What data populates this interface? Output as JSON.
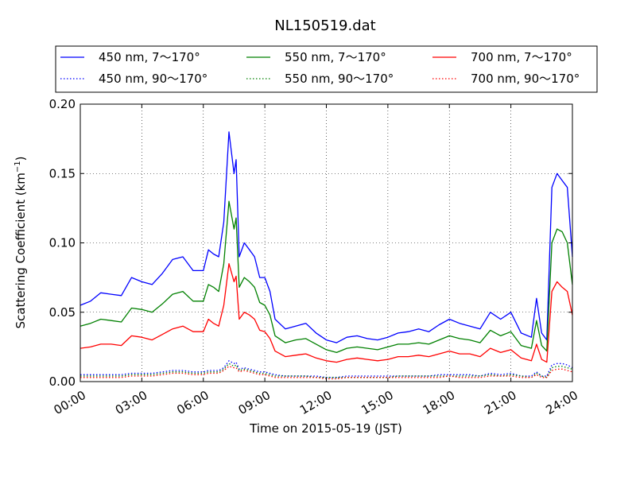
{
  "chart_data": {
    "type": "line",
    "title": "NL150519.dat",
    "xlabel": "Time on 2015-05-19 (JST)",
    "ylabel_main": "Scattering Coefficient (km",
    "ylabel_sup": "−1",
    "ylabel_end": ")",
    "xlim": [
      "00:00",
      "24:00"
    ],
    "ylim": [
      0,
      0.2
    ],
    "grid": true,
    "legend_position": "top",
    "x_ticks": [
      "00:00",
      "03:00",
      "06:00",
      "09:00",
      "12:00",
      "15:00",
      "18:00",
      "21:00",
      "24:00"
    ],
    "y_ticks": [
      "0.00",
      "0.05",
      "0.10",
      "0.15",
      "0.20"
    ],
    "x_hours": [
      0,
      0.5,
      1,
      1.5,
      2,
      2.5,
      3,
      3.5,
      4,
      4.5,
      5,
      5.5,
      6,
      6.25,
      6.5,
      6.75,
      7,
      7.25,
      7.5,
      7.6,
      7.75,
      8,
      8.25,
      8.5,
      8.75,
      9,
      9.25,
      9.5,
      10,
      10.5,
      11,
      11.5,
      12,
      12.5,
      13,
      13.5,
      14,
      14.5,
      15,
      15.5,
      16,
      16.5,
      17,
      17.5,
      18,
      18.5,
      19,
      19.5,
      20,
      20.5,
      21,
      21.5,
      22,
      22.25,
      22.5,
      22.75,
      23,
      23.25,
      23.5,
      23.75,
      24
    ],
    "series": [
      {
        "name": "450 nm, 7～170°",
        "color": "#0000ff",
        "dash": "solid",
        "values": [
          0.055,
          0.058,
          0.064,
          0.063,
          0.062,
          0.075,
          0.072,
          0.07,
          0.078,
          0.088,
          0.09,
          0.08,
          0.08,
          0.095,
          0.092,
          0.09,
          0.115,
          0.18,
          0.15,
          0.16,
          0.09,
          0.1,
          0.095,
          0.09,
          0.075,
          0.075,
          0.065,
          0.045,
          0.038,
          0.04,
          0.042,
          0.035,
          0.03,
          0.028,
          0.032,
          0.033,
          0.031,
          0.03,
          0.032,
          0.035,
          0.036,
          0.038,
          0.036,
          0.041,
          0.045,
          0.042,
          0.04,
          0.038,
          0.05,
          0.045,
          0.05,
          0.035,
          0.032,
          0.06,
          0.035,
          0.03,
          0.14,
          0.15,
          0.145,
          0.14,
          0.09
        ]
      },
      {
        "name": "550 nm, 7～170°",
        "color": "#008000",
        "dash": "solid",
        "values": [
          0.04,
          0.042,
          0.045,
          0.044,
          0.043,
          0.053,
          0.052,
          0.05,
          0.056,
          0.063,
          0.065,
          0.058,
          0.058,
          0.07,
          0.068,
          0.065,
          0.085,
          0.13,
          0.11,
          0.118,
          0.068,
          0.075,
          0.072,
          0.068,
          0.057,
          0.055,
          0.048,
          0.033,
          0.028,
          0.03,
          0.031,
          0.027,
          0.023,
          0.021,
          0.024,
          0.025,
          0.024,
          0.023,
          0.025,
          0.027,
          0.027,
          0.028,
          0.027,
          0.03,
          0.033,
          0.031,
          0.03,
          0.028,
          0.037,
          0.033,
          0.036,
          0.026,
          0.024,
          0.044,
          0.026,
          0.022,
          0.1,
          0.11,
          0.108,
          0.1,
          0.07
        ]
      },
      {
        "name": "700 nm, 7～170°",
        "color": "#ff0000",
        "dash": "solid",
        "values": [
          0.024,
          0.025,
          0.027,
          0.027,
          0.026,
          0.033,
          0.032,
          0.03,
          0.034,
          0.038,
          0.04,
          0.036,
          0.036,
          0.045,
          0.042,
          0.04,
          0.055,
          0.085,
          0.072,
          0.076,
          0.045,
          0.05,
          0.048,
          0.045,
          0.037,
          0.036,
          0.031,
          0.022,
          0.018,
          0.019,
          0.02,
          0.017,
          0.015,
          0.014,
          0.016,
          0.017,
          0.016,
          0.015,
          0.016,
          0.018,
          0.018,
          0.019,
          0.018,
          0.02,
          0.022,
          0.02,
          0.02,
          0.018,
          0.024,
          0.021,
          0.023,
          0.017,
          0.015,
          0.027,
          0.016,
          0.014,
          0.065,
          0.072,
          0.068,
          0.065,
          0.048
        ]
      },
      {
        "name": "450 nm, 90～170°",
        "color": "#0000ff",
        "dash": "dotted",
        "values": [
          0.005,
          0.005,
          0.005,
          0.005,
          0.005,
          0.006,
          0.006,
          0.006,
          0.007,
          0.008,
          0.008,
          0.007,
          0.007,
          0.008,
          0.008,
          0.008,
          0.01,
          0.015,
          0.013,
          0.014,
          0.009,
          0.01,
          0.009,
          0.008,
          0.007,
          0.007,
          0.006,
          0.005,
          0.004,
          0.004,
          0.004,
          0.004,
          0.003,
          0.003,
          0.004,
          0.004,
          0.004,
          0.004,
          0.004,
          0.004,
          0.004,
          0.004,
          0.004,
          0.005,
          0.005,
          0.005,
          0.005,
          0.004,
          0.006,
          0.005,
          0.006,
          0.004,
          0.004,
          0.007,
          0.004,
          0.004,
          0.012,
          0.013,
          0.013,
          0.012,
          0.01
        ]
      },
      {
        "name": "550 nm, 90～170°",
        "color": "#008000",
        "dash": "dotted",
        "values": [
          0.004,
          0.004,
          0.004,
          0.004,
          0.004,
          0.005,
          0.005,
          0.005,
          0.006,
          0.007,
          0.007,
          0.006,
          0.006,
          0.007,
          0.007,
          0.007,
          0.009,
          0.013,
          0.011,
          0.012,
          0.008,
          0.009,
          0.008,
          0.007,
          0.006,
          0.006,
          0.005,
          0.004,
          0.004,
          0.004,
          0.004,
          0.003,
          0.003,
          0.003,
          0.003,
          0.003,
          0.003,
          0.003,
          0.003,
          0.004,
          0.004,
          0.004,
          0.004,
          0.004,
          0.004,
          0.004,
          0.004,
          0.004,
          0.005,
          0.004,
          0.005,
          0.004,
          0.003,
          0.006,
          0.004,
          0.003,
          0.01,
          0.011,
          0.011,
          0.01,
          0.009
        ]
      },
      {
        "name": "700 nm, 90～170°",
        "color": "#ff0000",
        "dash": "dotted",
        "values": [
          0.003,
          0.003,
          0.003,
          0.003,
          0.003,
          0.004,
          0.004,
          0.004,
          0.005,
          0.006,
          0.006,
          0.005,
          0.005,
          0.006,
          0.006,
          0.006,
          0.008,
          0.011,
          0.01,
          0.01,
          0.007,
          0.008,
          0.007,
          0.006,
          0.005,
          0.005,
          0.004,
          0.003,
          0.003,
          0.003,
          0.003,
          0.003,
          0.002,
          0.002,
          0.003,
          0.003,
          0.003,
          0.003,
          0.003,
          0.003,
          0.003,
          0.003,
          0.003,
          0.003,
          0.004,
          0.003,
          0.003,
          0.003,
          0.004,
          0.004,
          0.004,
          0.003,
          0.003,
          0.005,
          0.003,
          0.003,
          0.008,
          0.009,
          0.009,
          0.008,
          0.007
        ]
      }
    ]
  }
}
